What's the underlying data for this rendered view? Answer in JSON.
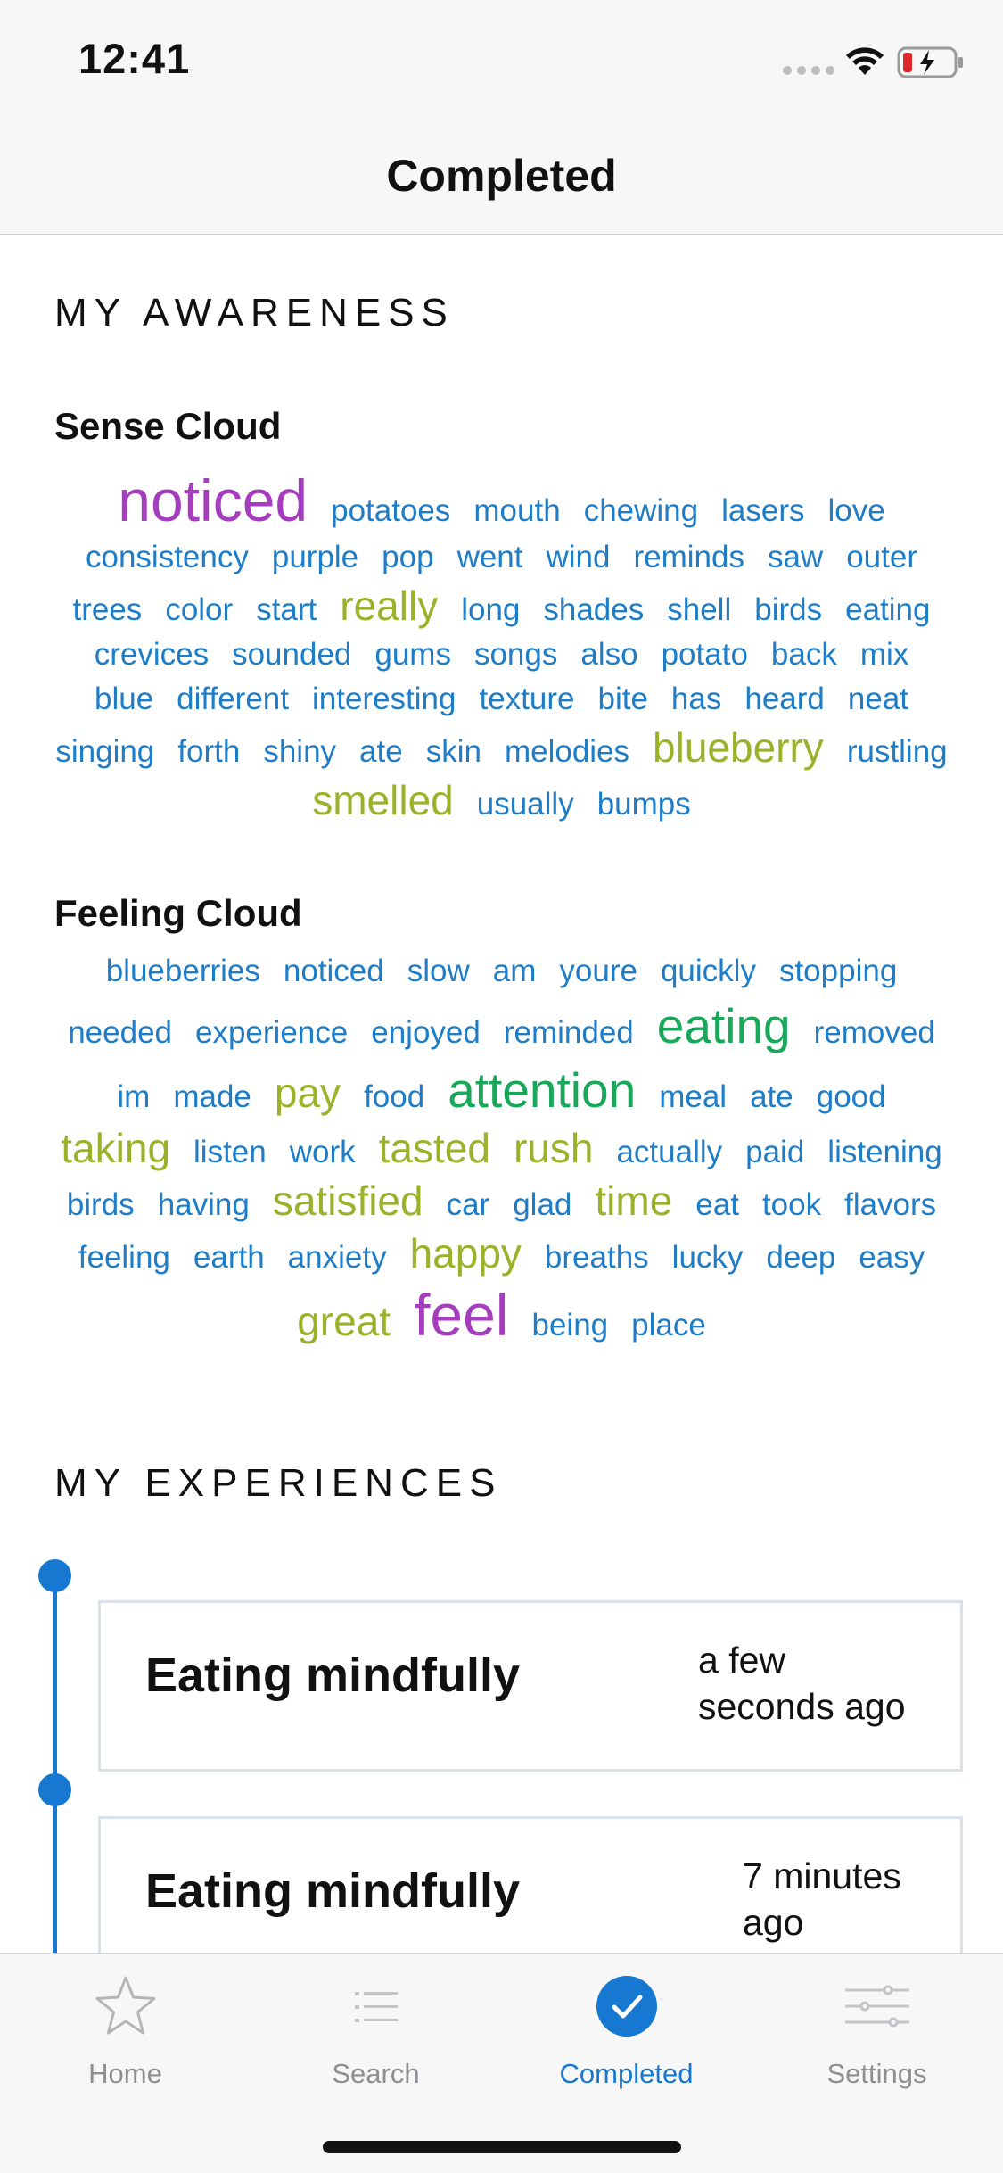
{
  "status_bar": {
    "time": "12:41"
  },
  "nav": {
    "title": "Completed"
  },
  "awareness": {
    "header": "MY AWARENESS",
    "sense_cloud": {
      "title": "Sense Cloud",
      "words": [
        {
          "text": "noticed",
          "size": "xl",
          "color": "#a63dbf"
        },
        {
          "text": "potatoes",
          "size": "s",
          "color": "#1f7dc8"
        },
        {
          "text": "mouth",
          "size": "s",
          "color": "#1f7dc8"
        },
        {
          "text": "chewing",
          "size": "s",
          "color": "#1f7dc8"
        },
        {
          "text": "lasers",
          "size": "s",
          "color": "#1f7dc8"
        },
        {
          "text": "love",
          "size": "s",
          "color": "#1f7dc8"
        },
        {
          "text": "consistency",
          "size": "s",
          "color": "#1f7dc8"
        },
        {
          "text": "purple",
          "size": "s",
          "color": "#1f7dc8"
        },
        {
          "text": "pop",
          "size": "s",
          "color": "#1f7dc8"
        },
        {
          "text": "went",
          "size": "s",
          "color": "#1f7dc8"
        },
        {
          "text": "wind",
          "size": "s",
          "color": "#1f7dc8"
        },
        {
          "text": "reminds",
          "size": "s",
          "color": "#1f7dc8"
        },
        {
          "text": "saw",
          "size": "s",
          "color": "#1f7dc8"
        },
        {
          "text": "outer",
          "size": "s",
          "color": "#1f7dc8"
        },
        {
          "text": "trees",
          "size": "s",
          "color": "#1f7dc8"
        },
        {
          "text": "color",
          "size": "s",
          "color": "#1f7dc8"
        },
        {
          "text": "start",
          "size": "s",
          "color": "#1f7dc8"
        },
        {
          "text": "really",
          "size": "m",
          "color": "#9ab22a"
        },
        {
          "text": "long",
          "size": "s",
          "color": "#1f7dc8"
        },
        {
          "text": "shades",
          "size": "s",
          "color": "#1f7dc8"
        },
        {
          "text": "shell",
          "size": "s",
          "color": "#1f7dc8"
        },
        {
          "text": "birds",
          "size": "s",
          "color": "#1f7dc8"
        },
        {
          "text": "eating",
          "size": "s",
          "color": "#1f7dc8"
        },
        {
          "text": "crevices",
          "size": "s",
          "color": "#1f7dc8"
        },
        {
          "text": "sounded",
          "size": "s",
          "color": "#1f7dc8"
        },
        {
          "text": "gums",
          "size": "s",
          "color": "#1f7dc8"
        },
        {
          "text": "songs",
          "size": "s",
          "color": "#1f7dc8"
        },
        {
          "text": "also",
          "size": "s",
          "color": "#1f7dc8"
        },
        {
          "text": "potato",
          "size": "s",
          "color": "#1f7dc8"
        },
        {
          "text": "back",
          "size": "s",
          "color": "#1f7dc8"
        },
        {
          "text": "mix",
          "size": "s",
          "color": "#1f7dc8"
        },
        {
          "text": "blue",
          "size": "s",
          "color": "#1f7dc8"
        },
        {
          "text": "different",
          "size": "s",
          "color": "#1f7dc8"
        },
        {
          "text": "interesting",
          "size": "s",
          "color": "#1f7dc8"
        },
        {
          "text": "texture",
          "size": "s",
          "color": "#1f7dc8"
        },
        {
          "text": "bite",
          "size": "s",
          "color": "#1f7dc8"
        },
        {
          "text": "has",
          "size": "s",
          "color": "#1f7dc8"
        },
        {
          "text": "heard",
          "size": "s",
          "color": "#1f7dc8"
        },
        {
          "text": "neat",
          "size": "s",
          "color": "#1f7dc8"
        },
        {
          "text": "singing",
          "size": "s",
          "color": "#1f7dc8"
        },
        {
          "text": "forth",
          "size": "s",
          "color": "#1f7dc8"
        },
        {
          "text": "shiny",
          "size": "s",
          "color": "#1f7dc8"
        },
        {
          "text": "ate",
          "size": "s",
          "color": "#1f7dc8"
        },
        {
          "text": "skin",
          "size": "s",
          "color": "#1f7dc8"
        },
        {
          "text": "melodies",
          "size": "s",
          "color": "#1f7dc8"
        },
        {
          "text": "blueberry",
          "size": "m",
          "color": "#9ab22a"
        },
        {
          "text": "rustling",
          "size": "s",
          "color": "#1f7dc8"
        },
        {
          "text": "smelled",
          "size": "m",
          "color": "#9ab22a"
        },
        {
          "text": "usually",
          "size": "s",
          "color": "#1f7dc8"
        },
        {
          "text": "bumps",
          "size": "s",
          "color": "#1f7dc8"
        }
      ]
    },
    "feeling_cloud": {
      "title": "Feeling Cloud",
      "words": [
        {
          "text": "blueberries",
          "size": "s",
          "color": "#1f7dc8"
        },
        {
          "text": "noticed",
          "size": "s",
          "color": "#1f7dc8"
        },
        {
          "text": "slow",
          "size": "s",
          "color": "#1f7dc8"
        },
        {
          "text": "am",
          "size": "s",
          "color": "#1f7dc8"
        },
        {
          "text": "youre",
          "size": "s",
          "color": "#1f7dc8"
        },
        {
          "text": "quickly",
          "size": "s",
          "color": "#1f7dc8"
        },
        {
          "text": "stopping",
          "size": "s",
          "color": "#1f7dc8"
        },
        {
          "text": "needed",
          "size": "s",
          "color": "#1f7dc8"
        },
        {
          "text": "experience",
          "size": "s",
          "color": "#1f7dc8"
        },
        {
          "text": "enjoyed",
          "size": "s",
          "color": "#1f7dc8"
        },
        {
          "text": "reminded",
          "size": "s",
          "color": "#1f7dc8"
        },
        {
          "text": "eating",
          "size": "l",
          "color": "#19a85a"
        },
        {
          "text": "removed",
          "size": "s",
          "color": "#1f7dc8"
        },
        {
          "text": "im",
          "size": "s",
          "color": "#1f7dc8"
        },
        {
          "text": "made",
          "size": "s",
          "color": "#1f7dc8"
        },
        {
          "text": "pay",
          "size": "m",
          "color": "#9ab22a"
        },
        {
          "text": "food",
          "size": "s",
          "color": "#1f7dc8"
        },
        {
          "text": "attention",
          "size": "l",
          "color": "#19a85a"
        },
        {
          "text": "meal",
          "size": "s",
          "color": "#1f7dc8"
        },
        {
          "text": "ate",
          "size": "s",
          "color": "#1f7dc8"
        },
        {
          "text": "good",
          "size": "s",
          "color": "#1f7dc8"
        },
        {
          "text": "taking",
          "size": "m",
          "color": "#9ab22a"
        },
        {
          "text": "listen",
          "size": "s",
          "color": "#1f7dc8"
        },
        {
          "text": "work",
          "size": "s",
          "color": "#1f7dc8"
        },
        {
          "text": "tasted",
          "size": "m",
          "color": "#9ab22a"
        },
        {
          "text": "rush",
          "size": "m",
          "color": "#9ab22a"
        },
        {
          "text": "actually",
          "size": "s",
          "color": "#1f7dc8"
        },
        {
          "text": "paid",
          "size": "s",
          "color": "#1f7dc8"
        },
        {
          "text": "listening",
          "size": "s",
          "color": "#1f7dc8"
        },
        {
          "text": "birds",
          "size": "s",
          "color": "#1f7dc8"
        },
        {
          "text": "having",
          "size": "s",
          "color": "#1f7dc8"
        },
        {
          "text": "satisfied",
          "size": "m",
          "color": "#9ab22a"
        },
        {
          "text": "car",
          "size": "s",
          "color": "#1f7dc8"
        },
        {
          "text": "glad",
          "size": "s",
          "color": "#1f7dc8"
        },
        {
          "text": "time",
          "size": "m",
          "color": "#9ab22a"
        },
        {
          "text": "eat",
          "size": "s",
          "color": "#1f7dc8"
        },
        {
          "text": "took",
          "size": "s",
          "color": "#1f7dc8"
        },
        {
          "text": "flavors",
          "size": "s",
          "color": "#1f7dc8"
        },
        {
          "text": "feeling",
          "size": "s",
          "color": "#1f7dc8"
        },
        {
          "text": "earth",
          "size": "s",
          "color": "#1f7dc8"
        },
        {
          "text": "anxiety",
          "size": "s",
          "color": "#1f7dc8"
        },
        {
          "text": "happy",
          "size": "m",
          "color": "#9ab22a"
        },
        {
          "text": "breaths",
          "size": "s",
          "color": "#1f7dc8"
        },
        {
          "text": "lucky",
          "size": "s",
          "color": "#1f7dc8"
        },
        {
          "text": "deep",
          "size": "s",
          "color": "#1f7dc8"
        },
        {
          "text": "easy",
          "size": "s",
          "color": "#1f7dc8"
        },
        {
          "text": "great",
          "size": "m",
          "color": "#9ab22a"
        },
        {
          "text": "feel",
          "size": "xl",
          "color": "#a63dbf"
        },
        {
          "text": "being",
          "size": "s",
          "color": "#1f7dc8"
        },
        {
          "text": "place",
          "size": "s",
          "color": "#1f7dc8"
        }
      ]
    }
  },
  "experiences": {
    "header": "MY EXPERIENCES",
    "items": [
      {
        "title": "Eating mindfully",
        "time": "a few seconds ago"
      },
      {
        "title": "Eating mindfully",
        "time": "7 minutes ago"
      }
    ]
  },
  "tab_bar": {
    "tabs": [
      {
        "label": "Home",
        "icon": "star-icon",
        "active": false
      },
      {
        "label": "Search",
        "icon": "list-icon",
        "active": false
      },
      {
        "label": "Completed",
        "icon": "checkmark-circle-icon",
        "active": true
      },
      {
        "label": "Settings",
        "icon": "sliders-icon",
        "active": false
      }
    ]
  },
  "colors": {
    "accent": "#1778d2",
    "word_small": "#1f7dc8",
    "word_medium": "#9ab22a",
    "word_large": "#19a85a",
    "word_xlarge": "#a63dbf"
  }
}
